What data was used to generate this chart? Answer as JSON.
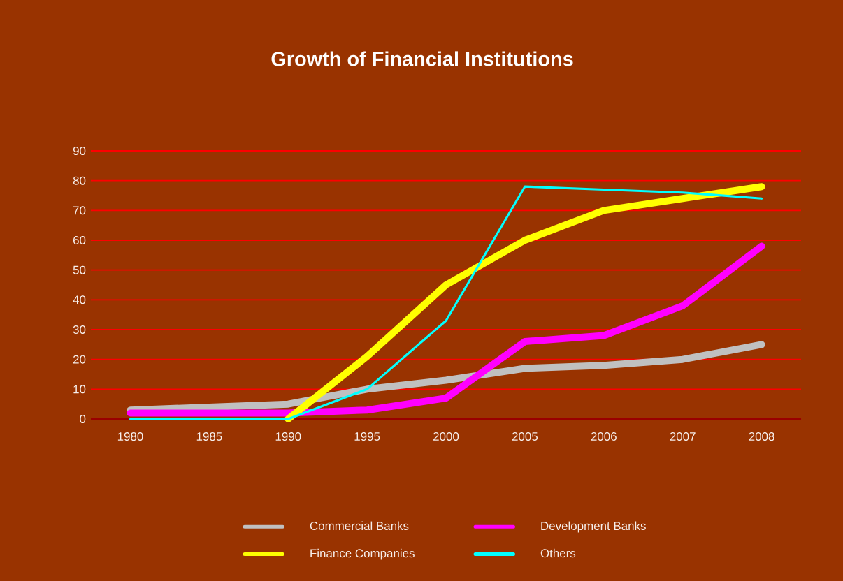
{
  "chart_data": {
    "type": "line",
    "title": "Growth of Financial Institutions",
    "categories": [
      "1980",
      "1985",
      "1990",
      "1995",
      "2000",
      "2005",
      "2006",
      "2007",
      "2008"
    ],
    "series": [
      {
        "name": "Commercial Banks",
        "color": "#c0c0c0",
        "values": [
          3,
          4,
          5,
          10,
          13,
          17,
          18,
          20,
          25
        ]
      },
      {
        "name": "Development Banks",
        "color": "#ff00ff",
        "values": [
          2,
          2,
          2,
          3,
          7,
          26,
          28,
          38,
          58
        ]
      },
      {
        "name": "Finance Companies",
        "color": "#ffff00",
        "values": [
          null,
          null,
          0,
          21,
          45,
          60,
          70,
          74,
          78
        ]
      },
      {
        "name": "Others",
        "color": "#00ffff",
        "values": [
          0,
          0,
          0,
          10,
          33,
          78,
          77,
          76,
          74
        ]
      }
    ],
    "ylim": [
      0,
      90
    ],
    "yticks": [
      0,
      10,
      20,
      30,
      40,
      50,
      60,
      70,
      80,
      90
    ],
    "grid": "y",
    "legend": "bottom",
    "marker": "none",
    "line_style": "solid"
  }
}
